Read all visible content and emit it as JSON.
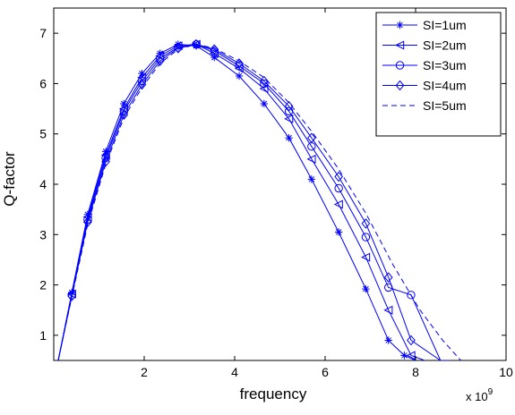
{
  "chart_data": {
    "type": "line",
    "title": "",
    "xlabel": "frequency",
    "ylabel": "Q-factor",
    "x_exponent_label": "x 10",
    "x_exponent_power": "9",
    "xlim": [
      0,
      10
    ],
    "ylim": [
      0.5,
      7.5
    ],
    "xticks": [
      "2",
      "4",
      "6",
      "8",
      "10"
    ],
    "yticks": [
      "1",
      "2",
      "3",
      "4",
      "5",
      "6",
      "7"
    ],
    "xtick_values": [
      2,
      4,
      6,
      8,
      10
    ],
    "ytick_values": [
      1,
      2,
      3,
      4,
      5,
      6,
      7
    ],
    "grid": false,
    "legend_position": "top-right",
    "color": "#0000ff",
    "series": [
      {
        "name": "SI=1um",
        "marker": "asterisk",
        "dash": "solid",
        "x": [
          0.1,
          0.4,
          0.75,
          1.15,
          1.55,
          1.95,
          2.35,
          2.75,
          3.15,
          3.55,
          4.1,
          4.65,
          5.2,
          5.7,
          6.3,
          6.9,
          7.4,
          7.75,
          8.0
        ],
        "y": [
          0.5,
          1.85,
          3.4,
          4.65,
          5.6,
          6.2,
          6.6,
          6.78,
          6.75,
          6.52,
          6.15,
          5.6,
          4.92,
          4.1,
          3.05,
          1.92,
          0.9,
          0.6,
          0.5
        ]
      },
      {
        "name": "SI=2um",
        "marker": "triangle-left",
        "dash": "solid",
        "x": [
          0.1,
          0.4,
          0.75,
          1.15,
          1.55,
          1.95,
          2.35,
          2.75,
          3.15,
          3.55,
          4.1,
          4.65,
          5.2,
          5.7,
          6.3,
          6.9,
          7.4,
          7.9,
          8.2
        ],
        "y": [
          0.5,
          1.82,
          3.35,
          4.58,
          5.5,
          6.12,
          6.55,
          6.75,
          6.78,
          6.6,
          6.3,
          5.9,
          5.3,
          4.5,
          3.6,
          2.55,
          1.5,
          0.6,
          0.5
        ]
      },
      {
        "name": "SI=3um",
        "marker": "circle",
        "dash": "solid",
        "x": [
          0.1,
          0.4,
          0.75,
          1.15,
          1.55,
          1.95,
          2.35,
          2.75,
          3.15,
          3.55,
          4.1,
          4.65,
          5.2,
          5.7,
          6.3,
          6.9,
          7.4,
          7.9,
          8.55
        ],
        "y": [
          0.5,
          1.8,
          3.3,
          4.52,
          5.45,
          6.05,
          6.5,
          6.72,
          6.78,
          6.65,
          6.35,
          6.0,
          5.45,
          4.75,
          3.92,
          2.95,
          1.95,
          1.8,
          0.5
        ]
      },
      {
        "name": "SI=4um",
        "marker": "diamond",
        "dash": "solid",
        "x": [
          0.1,
          0.4,
          0.75,
          1.15,
          1.55,
          1.95,
          2.35,
          2.75,
          3.15,
          3.55,
          4.1,
          4.65,
          5.2,
          5.7,
          6.3,
          6.9,
          7.4,
          7.9,
          8.55,
          8.75
        ],
        "y": [
          0.5,
          1.78,
          3.25,
          4.45,
          5.38,
          5.98,
          6.45,
          6.7,
          6.78,
          6.68,
          6.4,
          6.05,
          5.55,
          4.92,
          4.15,
          3.22,
          2.15,
          0.9,
          0.5,
          0.5
        ]
      },
      {
        "name": "SI=5um",
        "marker": "none",
        "dash": "dashed",
        "x": [
          0.1,
          0.4,
          0.75,
          1.15,
          1.55,
          1.95,
          2.35,
          2.75,
          3.15,
          3.55,
          4.1,
          4.65,
          5.2,
          5.7,
          6.3,
          6.9,
          7.5,
          8.1,
          8.6,
          9.0
        ],
        "y": [
          0.5,
          1.76,
          3.2,
          4.4,
          5.32,
          5.92,
          6.4,
          6.68,
          6.78,
          6.7,
          6.45,
          6.12,
          5.62,
          5.05,
          4.3,
          3.42,
          2.4,
          1.5,
          0.9,
          0.5
        ]
      }
    ]
  }
}
